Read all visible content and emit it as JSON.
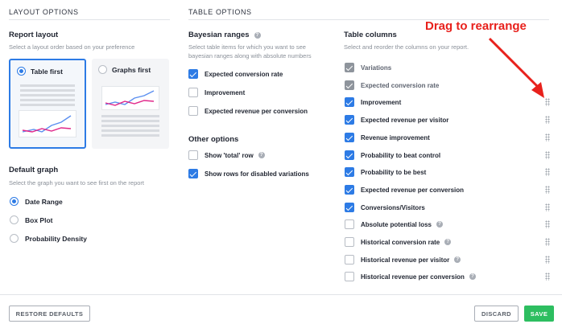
{
  "layout_options": {
    "heading": "LAYOUT OPTIONS",
    "report_layout": {
      "title": "Report layout",
      "helper": "Select a layout order based on your preference",
      "options": [
        {
          "label": "Table first",
          "selected": true
        },
        {
          "label": "Graphs first",
          "selected": false
        }
      ]
    },
    "default_graph": {
      "title": "Default graph",
      "helper": "Select the graph you want to see first on the report",
      "options": [
        {
          "label": "Date Range",
          "selected": true
        },
        {
          "label": "Box Plot",
          "selected": false
        },
        {
          "label": "Probability Density",
          "selected": false
        }
      ]
    }
  },
  "table_options": {
    "heading": "TABLE OPTIONS",
    "bayesian_ranges": {
      "title": "Bayesian ranges",
      "helper_line1": "Select table items for which you want to see",
      "helper_line2": "bayesian ranges along with absolute numbers",
      "items": [
        {
          "label": "Expected conversion rate",
          "checked": true
        },
        {
          "label": "Improvement",
          "checked": false
        },
        {
          "label": "Expected revenue per conversion",
          "checked": false
        }
      ]
    },
    "other_options": {
      "title": "Other options",
      "items": [
        {
          "label": "Show 'total' row",
          "checked": false,
          "help": true
        },
        {
          "label": "Show rows for disabled variations",
          "checked": true,
          "help": false
        }
      ]
    },
    "table_columns": {
      "title": "Table columns",
      "helper": "Select and reorder the columns on your report.",
      "items": [
        {
          "label": "Variations",
          "state": "locked",
          "help": false
        },
        {
          "label": "Expected conversion rate",
          "state": "locked",
          "help": false
        },
        {
          "label": "Improvement",
          "state": "on",
          "help": false
        },
        {
          "label": "Expected revenue per visitor",
          "state": "on",
          "help": false
        },
        {
          "label": "Revenue improvement",
          "state": "on",
          "help": false
        },
        {
          "label": "Probability to beat control",
          "state": "on",
          "help": false
        },
        {
          "label": "Probability to be best",
          "state": "on",
          "help": false
        },
        {
          "label": "Expected revenue per conversion",
          "state": "on",
          "help": false
        },
        {
          "label": "Conversions/Visitors",
          "state": "on",
          "help": false
        },
        {
          "label": "Absolute potential loss",
          "state": "off",
          "help": true
        },
        {
          "label": "Historical conversion rate",
          "state": "off",
          "help": true
        },
        {
          "label": "Historical revenue per visitor",
          "state": "off",
          "help": true
        },
        {
          "label": "Historical revenue per conversion",
          "state": "off",
          "help": true
        }
      ]
    }
  },
  "annotation": {
    "text": "Drag to rearrange"
  },
  "footer": {
    "restore_label": "RESTORE DEFAULTS",
    "discard_label": "DISCARD",
    "save_label": "SAVE"
  },
  "icons": {
    "help": "question-circle-icon",
    "grip": "drag-handle-icon",
    "arrow": "red-arrow"
  },
  "colors": {
    "accent": "#2d7be5",
    "save": "#2dbe60",
    "annotation": "#e8211c",
    "locked_checkbox": "#8e949c",
    "graph_line_blue": "#5b8ff0",
    "graph_line_pink": "#e0288a"
  }
}
